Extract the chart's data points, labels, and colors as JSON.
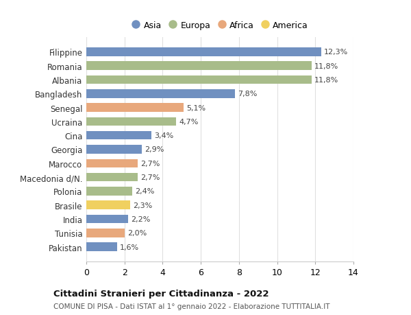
{
  "countries": [
    "Filippine",
    "Romania",
    "Albania",
    "Bangladesh",
    "Senegal",
    "Ucraina",
    "Cina",
    "Georgia",
    "Marocco",
    "Macedonia d/N.",
    "Polonia",
    "Brasile",
    "India",
    "Tunisia",
    "Pakistan"
  ],
  "values": [
    12.3,
    11.8,
    11.8,
    7.8,
    5.1,
    4.7,
    3.4,
    2.9,
    2.7,
    2.7,
    2.4,
    2.3,
    2.2,
    2.0,
    1.6
  ],
  "labels": [
    "12,3%",
    "11,8%",
    "11,8%",
    "7,8%",
    "5,1%",
    "4,7%",
    "3,4%",
    "2,9%",
    "2,7%",
    "2,7%",
    "2,4%",
    "2,3%",
    "2,2%",
    "2,0%",
    "1,6%"
  ],
  "continents": [
    "Asia",
    "Europa",
    "Europa",
    "Asia",
    "Africa",
    "Europa",
    "Asia",
    "Asia",
    "Africa",
    "Europa",
    "Europa",
    "America",
    "Asia",
    "Africa",
    "Asia"
  ],
  "colors": {
    "Asia": "#7090c0",
    "Europa": "#a8bc8a",
    "Africa": "#e8a87c",
    "America": "#f0d060"
  },
  "legend_order": [
    "Asia",
    "Europa",
    "Africa",
    "America"
  ],
  "title1": "Cittadini Stranieri per Cittadinanza - 2022",
  "title2": "COMUNE DI PISA - Dati ISTAT al 1° gennaio 2022 - Elaborazione TUTTITALIA.IT",
  "xlim": [
    0,
    14
  ],
  "xticks": [
    0,
    2,
    4,
    6,
    8,
    10,
    12,
    14
  ],
  "background_color": "#ffffff",
  "grid_color": "#e0e0e0"
}
